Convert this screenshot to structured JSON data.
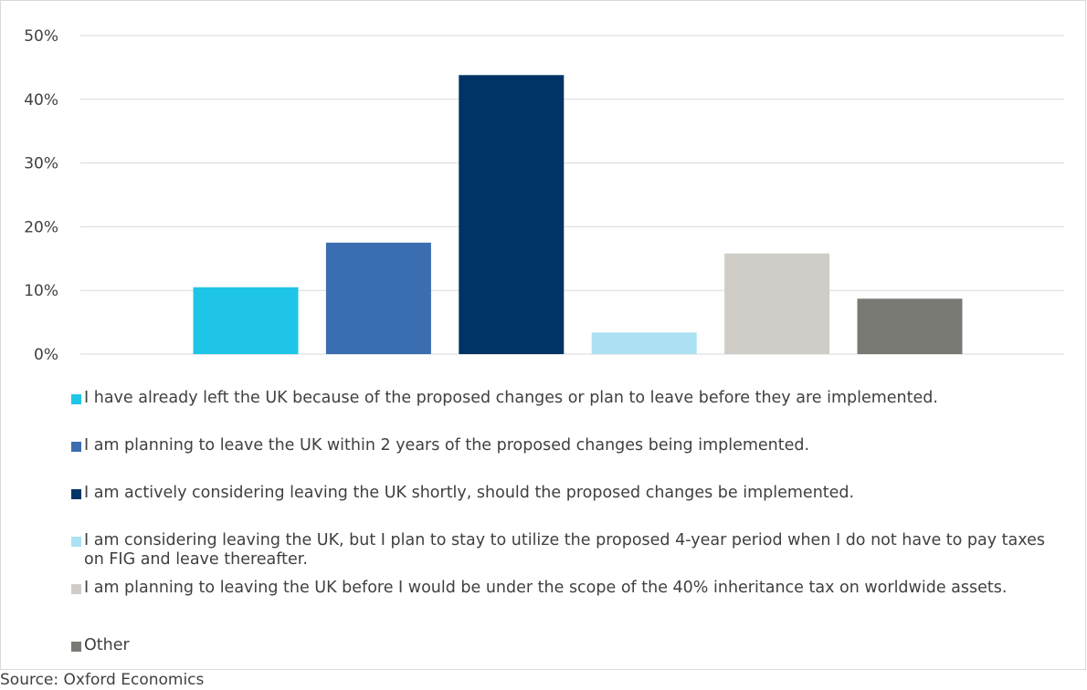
{
  "chart_data": {
    "type": "bar",
    "categories": [
      "I have already left the UK because of the proposed changes or plan to leave before they are implemented.",
      "I am planning to leave the UK within 2 years of the proposed changes being implemented.",
      "I am actively considering leaving the UK shortly, should the proposed changes be implemented.",
      "I am considering leaving the UK, but I plan to stay to utilize the proposed 4-year period when I do not have to pay taxes on FIG and leave thereafter.",
      "I am planning to leaving the UK before I would be under the scope of the 40% inheritance tax on worldwide assets.",
      "Other"
    ],
    "values": [
      10.5,
      17.5,
      43.8,
      3.4,
      15.8,
      8.7
    ],
    "colors": [
      "#1fc5e6",
      "#3b6eb0",
      "#003366",
      "#abe1f3",
      "#d0cdc8",
      "#7a7a75"
    ],
    "yticks": [
      "0%",
      "10%",
      "20%",
      "30%",
      "40%",
      "50%"
    ],
    "ylim": [
      0,
      50
    ],
    "grid": true,
    "legend_position": "bottom",
    "title": "",
    "xlabel": "",
    "ylabel": ""
  },
  "source": "Source: Oxford Economics"
}
